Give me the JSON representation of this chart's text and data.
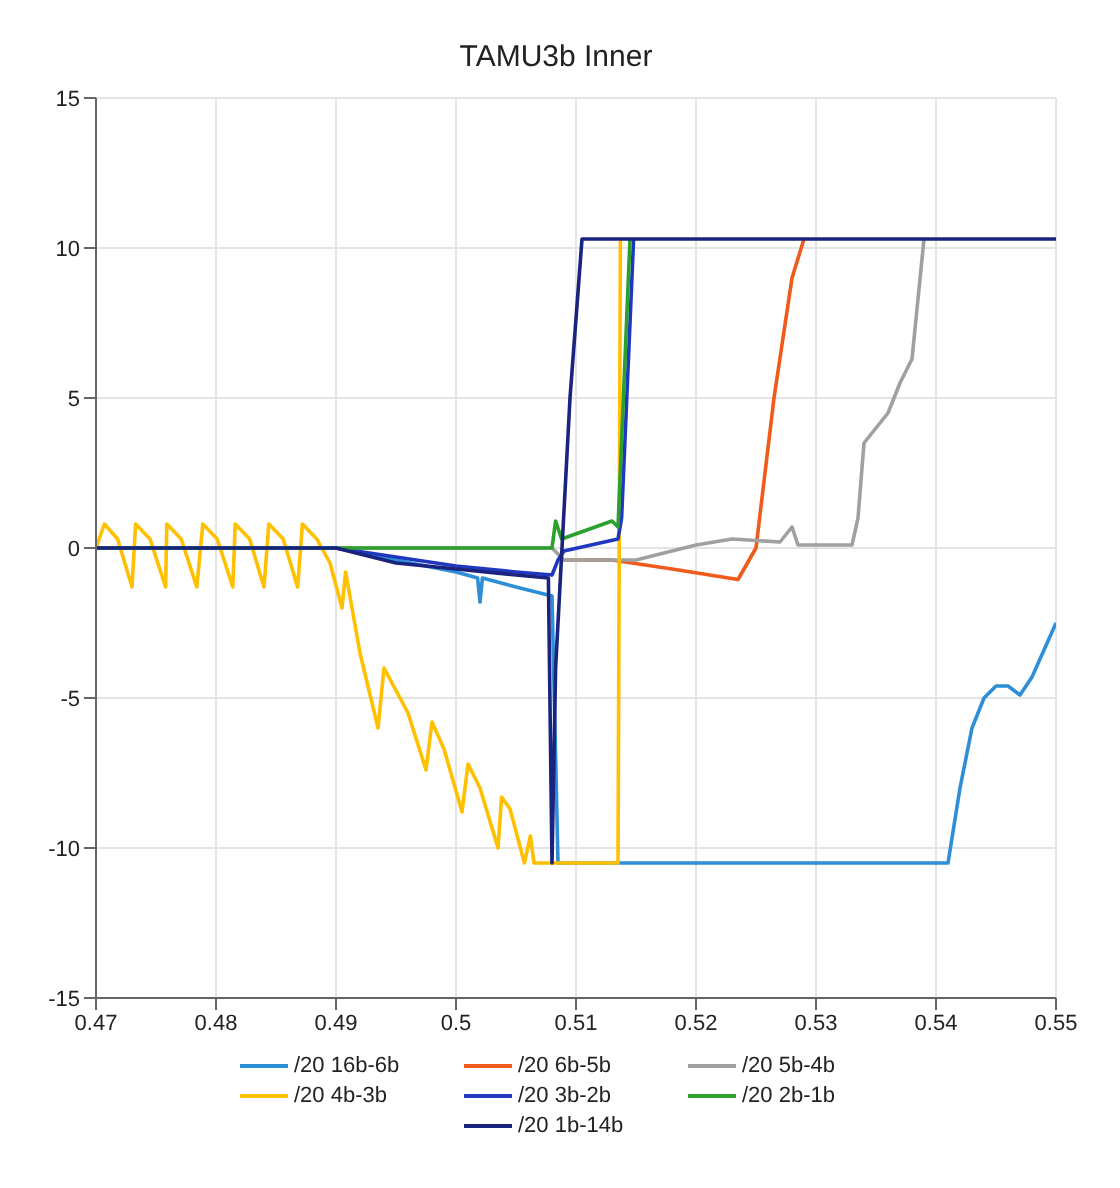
{
  "chart_data": {
    "type": "line",
    "title": "TAMU3b Inner",
    "xlim": [
      0.47,
      0.55
    ],
    "xticks": [
      0.47,
      0.48,
      0.49,
      0.5,
      0.51,
      0.52,
      0.53,
      0.54,
      0.55
    ],
    "ylim": [
      -15,
      15
    ],
    "yticks": [
      -15,
      -10,
      -5,
      0,
      5,
      10,
      15
    ],
    "grid": true,
    "legend": "bottom",
    "marker": "none",
    "series": [
      {
        "name": "/20 16b-6b",
        "color": "#2e8fd8",
        "x": [
          0.47,
          0.49,
          0.495,
          0.5,
          0.5018,
          0.502,
          0.5022,
          0.505,
          0.508,
          0.5085,
          0.541,
          0.542,
          0.543,
          0.544,
          0.545,
          0.546,
          0.547,
          0.548,
          0.55
        ],
        "values": [
          0,
          0,
          -0.4,
          -0.8,
          -1.0,
          -1.8,
          -1.0,
          -1.3,
          -1.6,
          -10.5,
          -10.5,
          -8,
          -6,
          -5,
          -4.6,
          -4.6,
          -4.9,
          -4.3,
          -2.5
        ]
      },
      {
        "name": "/20 6b-5b",
        "color": "#f05a1a",
        "x": [
          0.509,
          0.513,
          0.518,
          0.5235,
          0.525,
          0.5265,
          0.528,
          0.529
        ],
        "values": [
          -0.4,
          -0.4,
          -0.7,
          -1.05,
          0,
          5,
          9,
          10.3
        ]
      },
      {
        "name": "/20 5b-4b",
        "color": "#a0a0a0",
        "x": [
          0.47,
          0.508,
          0.509,
          0.515,
          0.517,
          0.52,
          0.523,
          0.527,
          0.528,
          0.5285,
          0.533,
          0.5335,
          0.534,
          0.536,
          0.537,
          0.538,
          0.539
        ],
        "values": [
          0,
          0,
          -0.4,
          -0.4,
          -0.2,
          0.1,
          0.3,
          0.2,
          0.7,
          0.1,
          0.1,
          1,
          3.5,
          4.5,
          5.5,
          6.3,
          10.3
        ]
      },
      {
        "name": "/20 4b-3b",
        "color": "#ffc000",
        "x": [
          0.47,
          0.4707,
          0.4718,
          0.473,
          0.4733,
          0.4745,
          0.4758,
          0.4759,
          0.4771,
          0.4784,
          0.4789,
          0.4801,
          0.4814,
          0.4816,
          0.4828,
          0.484,
          0.4844,
          0.4856,
          0.4868,
          0.4872,
          0.4884,
          0.4895,
          0.4905,
          0.4908,
          0.492,
          0.4935,
          0.494,
          0.496,
          0.4975,
          0.498,
          0.499,
          0.5005,
          0.501,
          0.502,
          0.5035,
          0.5038,
          0.5045,
          0.5057,
          0.5062,
          0.5065,
          0.5135,
          0.5137
        ],
        "values": [
          0,
          0.8,
          0.3,
          -1.3,
          0.8,
          0.3,
          -1.3,
          0.8,
          0.3,
          -1.3,
          0.8,
          0.3,
          -1.3,
          0.8,
          0.3,
          -1.3,
          0.8,
          0.3,
          -1.3,
          0.8,
          0.3,
          -0.5,
          -2,
          -0.8,
          -3.5,
          -6,
          -4,
          -5.5,
          -7.4,
          -5.8,
          -6.7,
          -8.8,
          -7.2,
          -8,
          -10,
          -8.3,
          -8.7,
          -10.5,
          -9.6,
          -10.5,
          -10.5,
          10.3
        ]
      },
      {
        "name": "/20 3b-2b",
        "color": "#2038c0",
        "x": [
          0.47,
          0.49,
          0.495,
          0.5,
          0.505,
          0.508,
          0.5085,
          0.509,
          0.5135,
          0.5138,
          0.5148
        ],
        "values": [
          0,
          0,
          -0.3,
          -0.6,
          -0.8,
          -0.9,
          -0.4,
          -0.1,
          0.3,
          1,
          10.3
        ]
      },
      {
        "name": "/20 2b-1b",
        "color": "#2ca02c",
        "x": [
          0.47,
          0.508,
          0.5083,
          0.5088,
          0.513,
          0.5135,
          0.5145
        ],
        "values": [
          0,
          0,
          0.9,
          0.3,
          0.9,
          0.7,
          10.3
        ]
      },
      {
        "name": "/20 1b-14b",
        "color": "#1a237e",
        "x": [
          0.47,
          0.49,
          0.495,
          0.5,
          0.505,
          0.5077,
          0.508,
          0.5083,
          0.5095,
          0.5105,
          0.55
        ],
        "values": [
          0,
          0,
          -0.5,
          -0.7,
          -0.9,
          -1.0,
          -10.5,
          -4,
          5,
          10.3,
          10.3
        ]
      }
    ]
  }
}
